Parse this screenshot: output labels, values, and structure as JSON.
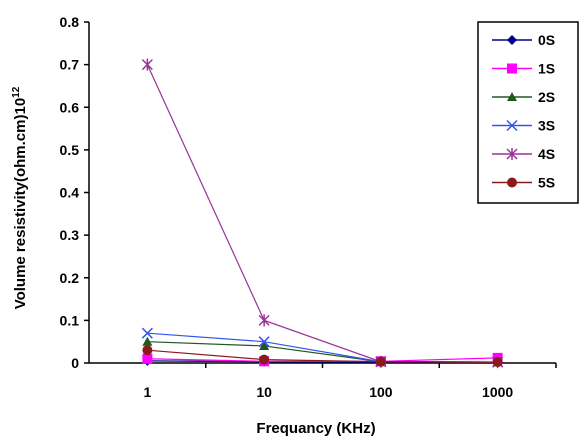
{
  "chart_data": {
    "type": "line",
    "title": "",
    "xlabel": "Frequancy (KHz)",
    "ylabel_main": "Volume resistivity(ohm.cm)10",
    "ylabel_exp": "12",
    "categories": [
      "1",
      "10",
      "100",
      "1000"
    ],
    "ylim": [
      0,
      0.8
    ],
    "yticks": [
      "0",
      "0.1",
      "0.2",
      "0.3",
      "0.4",
      "0.5",
      "0.6",
      "0.7",
      "0.8"
    ],
    "grid": false,
    "legend_position": "top-right",
    "series": [
      {
        "name": "0S",
        "values": [
          0.005,
          0.003,
          0.002,
          0.002
        ],
        "color": "#00008B",
        "marker": "diamond"
      },
      {
        "name": "1S",
        "values": [
          0.01,
          0.004,
          0.004,
          0.012
        ],
        "color": "#FF00FF",
        "marker": "square"
      },
      {
        "name": "2S",
        "values": [
          0.05,
          0.04,
          0.003,
          0.002
        ],
        "color": "#1E5A1E",
        "marker": "triangle"
      },
      {
        "name": "3S",
        "values": [
          0.07,
          0.05,
          0.003,
          0.002
        ],
        "color": "#3355EE",
        "marker": "x"
      },
      {
        "name": "4S",
        "values": [
          0.7,
          0.1,
          0.003,
          0.002
        ],
        "color": "#993399",
        "marker": "star"
      },
      {
        "name": "5S",
        "values": [
          0.03,
          0.008,
          0.003,
          0.002
        ],
        "color": "#8B1A1A",
        "marker": "circle"
      }
    ]
  }
}
